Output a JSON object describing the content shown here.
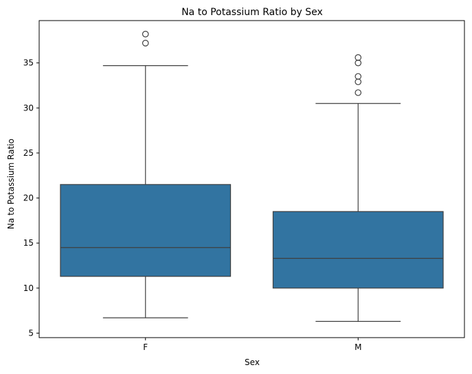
{
  "chart_data": {
    "type": "box",
    "title": "Na to Potassium Ratio by Sex",
    "xlabel": "Sex",
    "ylabel": "Na to Potassium Ratio",
    "categories": [
      "F",
      "M"
    ],
    "ylim": [
      4.5,
      39.7
    ],
    "yticks": [
      5,
      10,
      15,
      20,
      25,
      30,
      35
    ],
    "box_color": "#3274a1",
    "edge_color": "#3f3f3f",
    "grid": false,
    "boxes": [
      {
        "category": "F",
        "whisker_low": 6.7,
        "q1": 11.3,
        "median": 14.5,
        "q3": 21.5,
        "whisker_high": 34.7,
        "outliers": [
          37.2,
          38.2
        ]
      },
      {
        "category": "M",
        "whisker_low": 6.3,
        "q1": 10.0,
        "median": 13.3,
        "q3": 18.5,
        "whisker_high": 30.5,
        "outliers": [
          31.7,
          32.9,
          33.5,
          35.0,
          35.6
        ]
      }
    ]
  }
}
